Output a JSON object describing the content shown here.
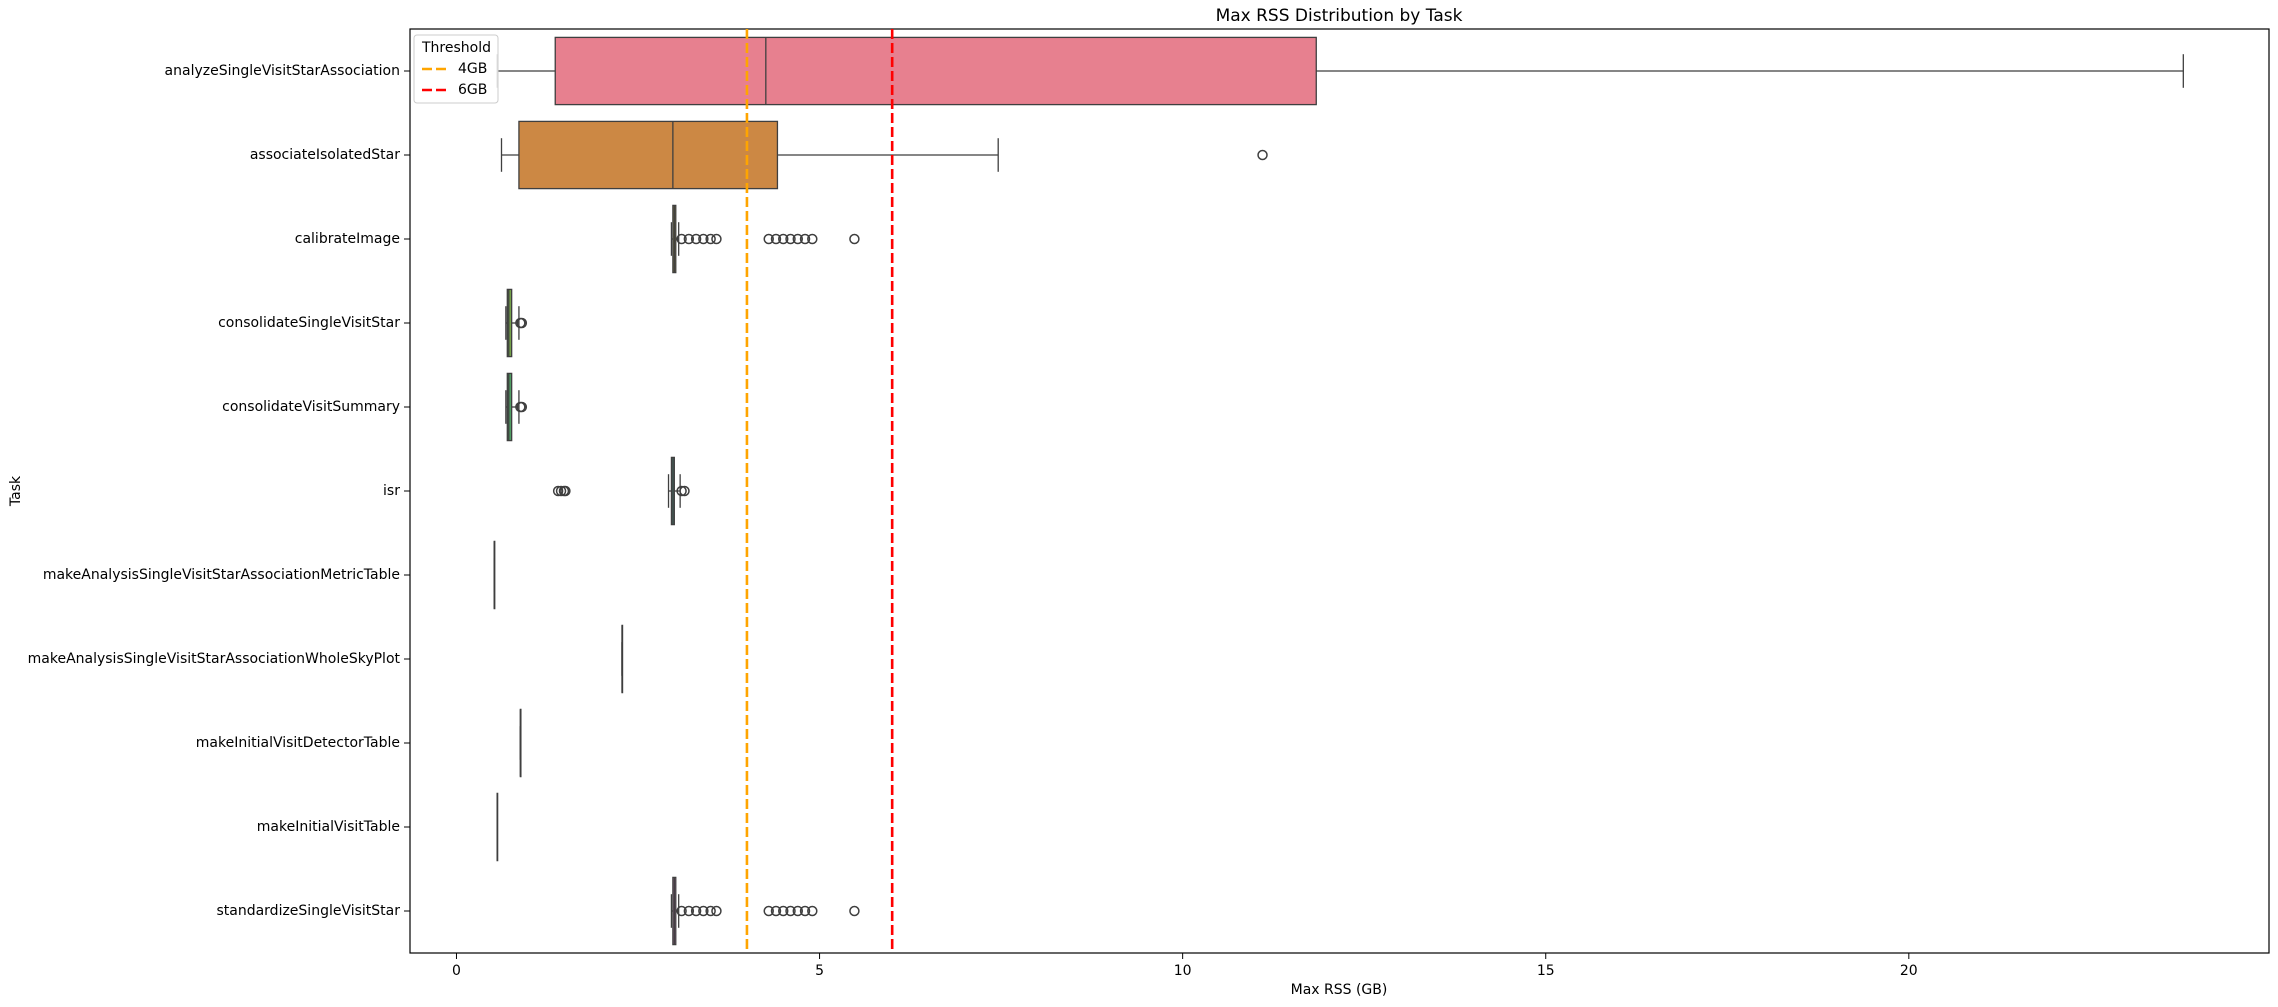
{
  "chart_data": {
    "type": "box",
    "orientation": "horizontal",
    "title": "Max RSS Distribution by Task",
    "xlabel": "Max RSS (GB)",
    "ylabel": "Task",
    "categories": [
      "analyzeSingleVisitStarAssociation",
      "associateIsolatedStar",
      "calibrateImage",
      "consolidateSingleVisitStar",
      "consolidateVisitSummary",
      "isr",
      "makeAnalysisSingleVisitStarAssociationMetricTable",
      "makeAnalysisSingleVisitStarAssociationWholeSkyPlot",
      "makeInitialVisitDetectorTable",
      "makeInitialVisitTable",
      "standardizeSingleVisitStar"
    ],
    "boxes": [
      {
        "whislo": 0.56,
        "q1": 1.36,
        "med": 4.26,
        "q3": 11.84,
        "whishi": 23.78,
        "color": "#e7808f"
      },
      {
        "whislo": 0.62,
        "q1": 0.86,
        "med": 2.98,
        "q3": 4.42,
        "whishi": 7.46,
        "fliers": [
          11.1
        ],
        "color": "#cc8844"
      },
      {
        "whislo": 2.96,
        "q1": 2.98,
        "med": 3.0,
        "q3": 3.02,
        "whishi": 3.06,
        "fliers": [
          3.1,
          3.2,
          3.3,
          3.4,
          3.5,
          3.58,
          4.3,
          4.4,
          4.5,
          4.6,
          4.7,
          4.8,
          4.9,
          5.48
        ],
        "color": "#a89a3f"
      },
      {
        "whislo": 0.68,
        "q1": 0.7,
        "med": 0.72,
        "q3": 0.76,
        "whishi": 0.86,
        "fliers": [
          0.88,
          0.9
        ],
        "color": "#73a048"
      },
      {
        "whislo": 0.68,
        "q1": 0.7,
        "med": 0.72,
        "q3": 0.76,
        "whishi": 0.86,
        "fliers": [
          0.88,
          0.9
        ],
        "color": "#4e9d62"
      },
      {
        "whislo": 2.92,
        "q1": 2.96,
        "med": 2.98,
        "q3": 3.0,
        "whishi": 3.08,
        "fliers": [
          1.4,
          1.44,
          1.48,
          1.5,
          3.1,
          3.14
        ],
        "color": "#4e9b8b"
      },
      {
        "whislo": 0.52,
        "q1": 0.52,
        "med": 0.52,
        "q3": 0.52,
        "whishi": 0.52,
        "color": "#50999f"
      },
      {
        "whislo": 2.28,
        "q1": 2.28,
        "med": 2.28,
        "q3": 2.28,
        "whishi": 2.28,
        "color": "#5497b7"
      },
      {
        "whislo": 0.88,
        "q1": 0.88,
        "med": 0.88,
        "q3": 0.88,
        "whishi": 0.88,
        "color": "#7b8fd0"
      },
      {
        "whislo": 0.56,
        "q1": 0.56,
        "med": 0.56,
        "q3": 0.56,
        "whishi": 0.56,
        "color": "#b27fd0"
      },
      {
        "whislo": 2.96,
        "q1": 2.98,
        "med": 3.0,
        "q3": 3.02,
        "whishi": 3.06,
        "fliers": [
          3.1,
          3.2,
          3.3,
          3.4,
          3.5,
          3.58,
          4.3,
          4.4,
          4.5,
          4.6,
          4.7,
          4.8,
          4.9,
          5.48
        ],
        "color": "#d77ac0"
      }
    ],
    "thresholds": [
      {
        "name": "4GB",
        "value": 4,
        "color": "#ffa500"
      },
      {
        "name": "6GB",
        "value": 6,
        "color": "#ff0000"
      }
    ],
    "legend_title": "Threshold",
    "legend_position": "upper left",
    "xlim": [
      -0.64,
      24.96
    ],
    "xticks": [
      0,
      5,
      10,
      15,
      20
    ]
  }
}
